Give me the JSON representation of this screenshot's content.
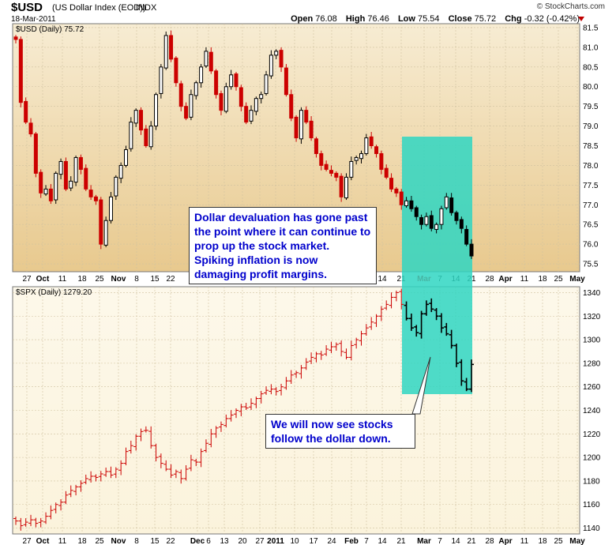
{
  "header": {
    "symbol": "$USD",
    "name": "(US Dollar Index (EOD))",
    "exchange": "INDX",
    "date": "18-Mar-2011",
    "logo": "© StockCharts.com",
    "quote": {
      "open_label": "Open",
      "open": "76.08",
      "high_label": "High",
      "high": "76.46",
      "low_label": "Low",
      "low": "75.54",
      "close_label": "Close",
      "close": "75.72",
      "chg_label": "Chg",
      "chg": "-0.32 (-0.42%)"
    },
    "down_arrow_color": "#c00000"
  },
  "annotations": {
    "top": "Dollar devaluation has gone past the point where it can continue to prop up the stock market. Spiking inflation is now damaging profit margins.",
    "bottom": "We will now see stocks follow the dollar down."
  },
  "colors": {
    "up": "#000000",
    "down": "#cc0000",
    "highlight": "#2fd6c2",
    "panel_top": "#e8c98e",
    "panel_bottom": "#fbf3dc"
  },
  "chart_data": [
    {
      "type": "candlestick",
      "label": "$USD (Daily) 75.72",
      "ylim": [
        75.3,
        81.6
      ],
      "ticks": [
        75.5,
        76.0,
        76.5,
        77.0,
        77.5,
        78.0,
        78.5,
        79.0,
        79.5,
        80.0,
        80.5,
        81.0,
        81.5
      ],
      "x_tick_labels": [
        "27",
        "Oct",
        "11",
        "18",
        "25",
        "Nov",
        "8",
        "15",
        "22",
        "Dec",
        "6",
        "13",
        "20",
        "27",
        "2011",
        "10",
        "17",
        "24",
        "Feb",
        "7",
        "14",
        "21",
        "Mar",
        "7",
        "14",
        "21",
        "28",
        "Apr",
        "11",
        "18",
        "25",
        "May"
      ],
      "grid": true,
      "closes": [
        81.2,
        79.6,
        79.1,
        78.8,
        77.8,
        77.3,
        77.4,
        77.1,
        77.8,
        78.1,
        77.4,
        77.6,
        78.2,
        77.9,
        77.4,
        77.2,
        77.1,
        76.0,
        76.6,
        77.2,
        77.7,
        78.0,
        78.4,
        79.1,
        79.4,
        78.9,
        78.5,
        79.0,
        79.8,
        80.5,
        81.3,
        80.7,
        80.1,
        79.5,
        79.2,
        79.8,
        80.1,
        80.5,
        80.9,
        80.4,
        79.8,
        79.4,
        80.0,
        80.3,
        80.0,
        79.5,
        79.1,
        79.4,
        79.7,
        79.8,
        80.3,
        80.8,
        80.9,
        80.5,
        79.8,
        79.2,
        78.7,
        79.4,
        79.1,
        78.7,
        78.3,
        78.0,
        77.9,
        77.8,
        77.7,
        77.2,
        77.7,
        78.1,
        78.2,
        78.3,
        78.7,
        78.5,
        78.3,
        77.9,
        77.7,
        77.4,
        77.3,
        77.0,
        77.1,
        76.9,
        76.7,
        76.5,
        76.7,
        76.4,
        76.5,
        76.9,
        77.2,
        76.8,
        76.6,
        76.4,
        76.0,
        75.7
      ]
    },
    {
      "type": "ohlc",
      "label": "$SPX (Daily) 1279.20",
      "ylim": [
        1135,
        1345
      ],
      "ticks": [
        1140,
        1160,
        1180,
        1200,
        1220,
        1240,
        1260,
        1280,
        1300,
        1320,
        1340
      ],
      "x_tick_labels": [
        "27",
        "Oct",
        "11",
        "18",
        "25",
        "Nov",
        "8",
        "15",
        "22",
        "Dec",
        "6",
        "13",
        "20",
        "27",
        "2011",
        "10",
        "17",
        "24",
        "Feb",
        "7",
        "14",
        "21",
        "Mar",
        "7",
        "14",
        "21",
        "28",
        "Apr",
        "11",
        "18",
        "25",
        "May"
      ],
      "grid": true,
      "closes": [
        1146,
        1142,
        1145,
        1147,
        1144,
        1146,
        1150,
        1155,
        1160,
        1162,
        1168,
        1172,
        1175,
        1178,
        1182,
        1184,
        1183,
        1186,
        1188,
        1185,
        1190,
        1195,
        1205,
        1210,
        1218,
        1222,
        1223,
        1210,
        1200,
        1195,
        1190,
        1185,
        1188,
        1182,
        1190,
        1198,
        1196,
        1205,
        1212,
        1220,
        1225,
        1228,
        1233,
        1236,
        1240,
        1243,
        1242,
        1246,
        1250,
        1254,
        1257,
        1258,
        1256,
        1260,
        1265,
        1270,
        1272,
        1276,
        1281,
        1285,
        1288,
        1287,
        1292,
        1294,
        1296,
        1290,
        1285,
        1295,
        1300,
        1305,
        1310,
        1315,
        1320,
        1326,
        1330,
        1336,
        1340,
        1330,
        1318,
        1310,
        1306,
        1322,
        1330,
        1326,
        1320,
        1310,
        1305,
        1295,
        1280,
        1265,
        1258,
        1279
      ]
    }
  ]
}
